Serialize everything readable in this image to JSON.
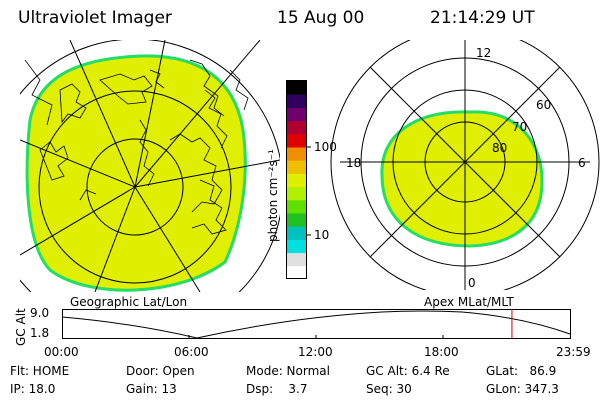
{
  "header": {
    "instrument": "Ultraviolet Imager",
    "date": "15 Aug 00",
    "time": "21:14:29 UT"
  },
  "left_panel": {
    "label": "Geographic Lat/Lon",
    "fill_color": "#e0ee00",
    "edge_color": "#22dd66"
  },
  "right_panel": {
    "label": "Apex MLat/MLT",
    "mlt_labels": {
      "top": "12",
      "bottom": "0",
      "left": "18",
      "right": "6"
    },
    "lat_labels": [
      "60",
      "70",
      "80"
    ]
  },
  "colorbar": {
    "unit_label": "photon cm⁻²s⁻¹",
    "tick_labels": [
      "100",
      "10"
    ],
    "colors": [
      "#ffffff",
      "#e0e0e0",
      "#00e0e0",
      "#00c0c0",
      "#20c020",
      "#60e000",
      "#b0f000",
      "#e0ee00",
      "#f0c000",
      "#f09000",
      "#e00000",
      "#b00030",
      "#700070",
      "#300060",
      "#000000"
    ]
  },
  "timeline": {
    "ylabel": "GC Alt",
    "y_ticks": [
      "9.0",
      "1.8"
    ],
    "x_ticks": [
      "00:00",
      "06:00",
      "12:00",
      "18:00",
      "23:59"
    ],
    "current_time_fraction": 0.8857,
    "marker_color": "#cc0000"
  },
  "info": {
    "col1": [
      "Flt: HOME",
      "IP: 18.0"
    ],
    "col2": [
      "Door: Open",
      "Gain: 13"
    ],
    "col3": [
      "Mode: Normal",
      "Dsp:    3.7"
    ],
    "col4": [
      "GC Alt: 6.4 Re",
      "Seq: 30"
    ],
    "col5": [
      "GLat:   86.9",
      "GLon: 347.3"
    ]
  }
}
